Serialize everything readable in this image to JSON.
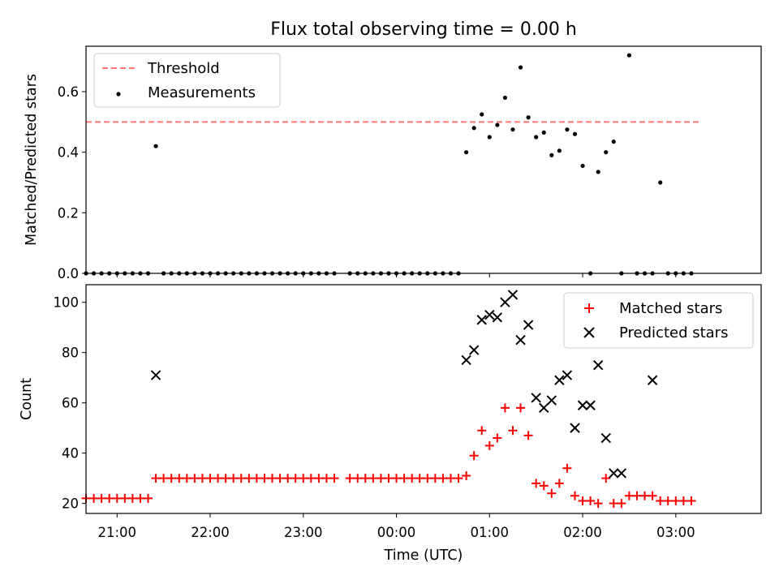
{
  "figure": {
    "title": "Flux total observing time = 0.00 h",
    "xlabel": "Time (UTC)"
  },
  "chart_data": [
    {
      "type": "scatter",
      "ylabel": "Matched/Predicted stars",
      "xlim": [
        "20:40",
        "03:55"
      ],
      "ylim": [
        0,
        0.75
      ],
      "yticks": [
        0,
        0.2,
        0.4,
        0.6
      ],
      "yticklabels": [
        "0.0",
        "0.2",
        "0.4",
        "0.6"
      ],
      "legend_position": "upper left",
      "threshold": {
        "name": "Threshold",
        "value": 0.5,
        "x_start": "20:40",
        "x_end": "03:15",
        "color": "#ff7777"
      },
      "series": [
        {
          "name": "Measurements",
          "color": "#000000",
          "marker": "dot",
          "x": [
            "20:40",
            "20:45",
            "20:50",
            "20:55",
            "21:00",
            "21:05",
            "21:10",
            "21:15",
            "21:20",
            "21:25",
            "21:30",
            "21:35",
            "21:40",
            "21:45",
            "21:50",
            "21:55",
            "22:00",
            "22:05",
            "22:10",
            "22:15",
            "22:20",
            "22:25",
            "22:30",
            "22:35",
            "22:40",
            "22:45",
            "22:50",
            "22:55",
            "23:00",
            "23:05",
            "23:10",
            "23:15",
            "23:20",
            "23:30",
            "23:35",
            "23:40",
            "23:45",
            "23:50",
            "23:55",
            "00:00",
            "00:05",
            "00:10",
            "00:15",
            "00:20",
            "00:25",
            "00:30",
            "00:35",
            "00:40",
            "00:45",
            "00:50",
            "00:55",
            "01:00",
            "01:05",
            "01:10",
            "01:15",
            "01:20",
            "01:25",
            "01:30",
            "01:35",
            "01:40",
            "01:45",
            "01:50",
            "01:55",
            "02:00",
            "02:05",
            "02:10",
            "02:15",
            "02:20",
            "02:25",
            "02:30",
            "02:35",
            "02:40",
            "02:45",
            "02:50",
            "02:55",
            "03:00",
            "03:05",
            "03:10"
          ],
          "y": [
            0,
            0,
            0,
            0,
            0,
            0,
            0,
            0,
            0,
            0.42,
            0,
            0,
            0,
            0,
            0,
            0,
            0,
            0,
            0,
            0,
            0,
            0,
            0,
            0,
            0,
            0,
            0,
            0,
            0,
            0,
            0,
            0,
            0,
            0,
            0,
            0,
            0,
            0,
            0,
            0,
            0,
            0,
            0,
            0,
            0,
            0,
            0,
            0,
            0.4,
            0.48,
            0.525,
            0.45,
            0.49,
            0.58,
            0.475,
            0.68,
            0.515,
            0.45,
            0.465,
            0.39,
            0.405,
            0.475,
            0.46,
            0.355,
            0,
            0.335,
            0.4,
            0.435,
            0,
            0.72,
            0,
            0,
            0,
            0.3,
            0,
            0,
            0,
            0
          ]
        }
      ]
    },
    {
      "type": "scatter",
      "ylabel": "Count",
      "xlim": [
        "20:40",
        "03:55"
      ],
      "ylim": [
        16,
        107
      ],
      "yticks": [
        20,
        40,
        60,
        80,
        100
      ],
      "yticklabels": [
        "20",
        "40",
        "60",
        "80",
        "100"
      ],
      "xticks": [
        "21:00",
        "22:00",
        "23:00",
        "00:00",
        "01:00",
        "02:00",
        "03:00"
      ],
      "legend_position": "upper right",
      "series": [
        {
          "name": "Matched stars",
          "color": "#ff0000",
          "marker": "plus",
          "x": [
            "20:40",
            "20:45",
            "20:50",
            "20:55",
            "21:00",
            "21:05",
            "21:10",
            "21:15",
            "21:20",
            "21:25",
            "21:30",
            "21:35",
            "21:40",
            "21:45",
            "21:50",
            "21:55",
            "22:00",
            "22:05",
            "22:10",
            "22:15",
            "22:20",
            "22:25",
            "22:30",
            "22:35",
            "22:40",
            "22:45",
            "22:50",
            "22:55",
            "23:00",
            "23:05",
            "23:10",
            "23:15",
            "23:20",
            "23:30",
            "23:35",
            "23:40",
            "23:45",
            "23:50",
            "23:55",
            "00:00",
            "00:05",
            "00:10",
            "00:15",
            "00:20",
            "00:25",
            "00:30",
            "00:35",
            "00:40",
            "00:45",
            "00:50",
            "00:55",
            "01:00",
            "01:05",
            "01:10",
            "01:15",
            "01:20",
            "01:25",
            "01:30",
            "01:35",
            "01:40",
            "01:45",
            "01:50",
            "01:55",
            "02:00",
            "02:05",
            "02:10",
            "02:15",
            "02:20",
            "02:25",
            "02:30",
            "02:35",
            "02:40",
            "02:45",
            "02:50",
            "02:55",
            "03:00",
            "03:05",
            "03:10"
          ],
          "y": [
            22,
            22,
            22,
            22,
            22,
            22,
            22,
            22,
            22,
            30,
            30,
            30,
            30,
            30,
            30,
            30,
            30,
            30,
            30,
            30,
            30,
            30,
            30,
            30,
            30,
            30,
            30,
            30,
            30,
            30,
            30,
            30,
            30,
            30,
            30,
            30,
            30,
            30,
            30,
            30,
            30,
            30,
            30,
            30,
            30,
            30,
            30,
            30,
            31,
            39,
            49,
            43,
            46,
            58,
            49,
            58,
            47,
            28,
            27,
            24,
            28,
            34,
            23,
            21,
            21,
            20,
            30,
            20,
            20,
            23,
            23,
            23,
            23,
            21,
            21,
            21,
            21,
            21
          ]
        },
        {
          "name": "Predicted stars",
          "color": "#000000",
          "marker": "x",
          "x": [
            "21:25",
            "00:45",
            "00:50",
            "00:55",
            "01:00",
            "01:05",
            "01:10",
            "01:15",
            "01:20",
            "01:25",
            "01:30",
            "01:35",
            "01:40",
            "01:45",
            "01:50",
            "01:55",
            "02:00",
            "02:05",
            "02:10",
            "02:15",
            "02:20",
            "02:25",
            "02:45"
          ],
          "y": [
            71,
            77,
            81,
            93,
            95,
            94,
            100,
            103,
            85,
            91,
            62,
            58,
            61,
            69,
            71,
            50,
            59,
            59,
            75,
            46,
            32,
            32,
            69
          ]
        }
      ]
    }
  ]
}
